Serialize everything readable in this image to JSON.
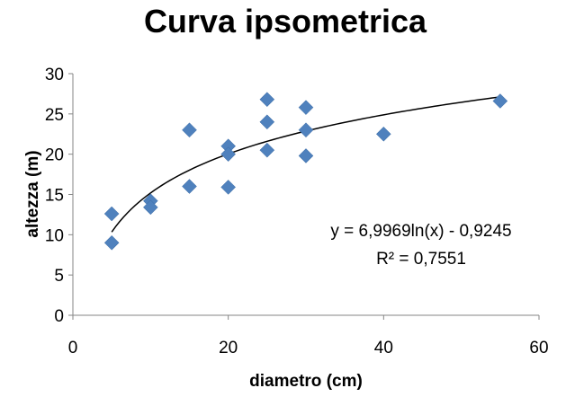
{
  "chart_data": {
    "type": "scatter",
    "title": "Curva ipsometrica",
    "xlabel": "diametro (cm)",
    "ylabel": "altezza (m)",
    "xlim": [
      0,
      60
    ],
    "ylim": [
      0,
      30
    ],
    "xticks": [
      0,
      20,
      40,
      60
    ],
    "yticks": [
      0,
      5,
      10,
      15,
      20,
      25,
      30
    ],
    "grid": false,
    "legend": "none",
    "marker": "diamond",
    "marker_color": "#4f81bd",
    "series": [
      {
        "x": [
          5,
          5,
          10,
          10,
          15,
          15,
          20,
          20,
          20,
          25,
          25,
          25,
          30,
          30,
          30,
          40,
          55
        ],
        "y": [
          12.6,
          9.0,
          14.2,
          13.4,
          23.0,
          16.0,
          21.0,
          20.0,
          15.9,
          26.8,
          24.0,
          20.5,
          25.8,
          23.0,
          19.8,
          22.5,
          26.6
        ]
      }
    ],
    "trendline": {
      "type": "logarithmic",
      "a": 6.9969,
      "b": -0.9245,
      "x_range": [
        5,
        55
      ],
      "color": "#000000"
    },
    "annotations": {
      "equation": "y = 6,9969ln(x) - 0,9245",
      "r_squared": "R² = 0,7551"
    }
  }
}
